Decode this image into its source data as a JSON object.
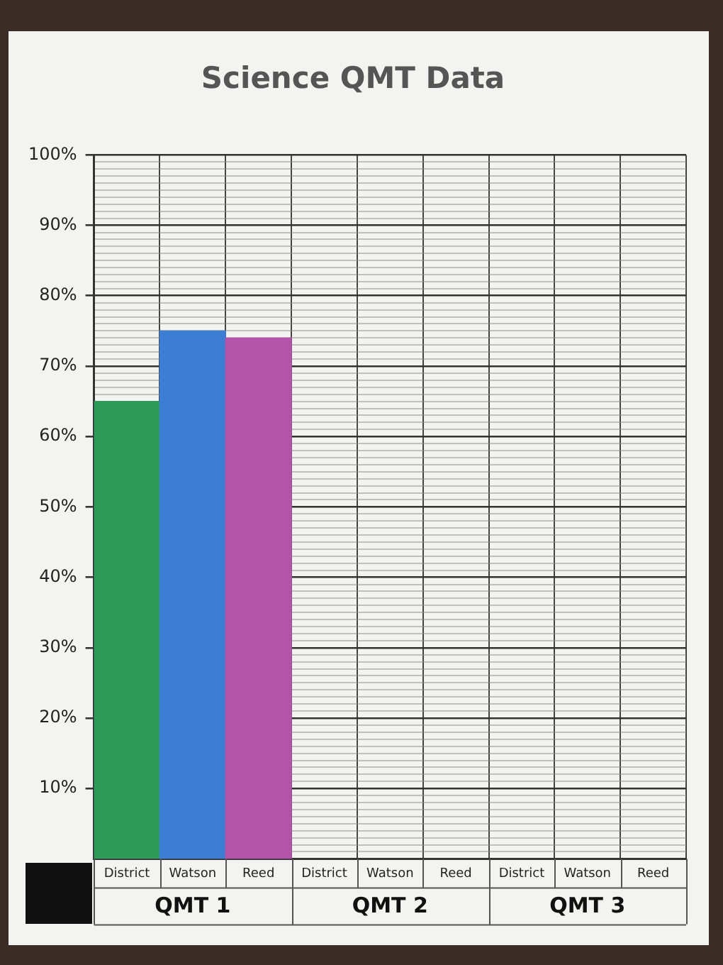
{
  "chart_data": {
    "type": "bar",
    "title": "Science QMT Data",
    "categories": [
      "District",
      "Watson",
      "Reed",
      "District",
      "Watson",
      "Reed",
      "District",
      "Watson",
      "Reed"
    ],
    "values": [
      65,
      75,
      74,
      null,
      null,
      null,
      null,
      null,
      null
    ],
    "colors": [
      "#2f9a57",
      "#3b7ed4",
      "#b553ab",
      null,
      null,
      null,
      null,
      null,
      null
    ],
    "ylim": [
      0,
      100
    ],
    "yticks": [
      {
        "value": 0,
        "label": null
      },
      {
        "value": 1,
        "label": null
      },
      {
        "value": 2,
        "label": null
      },
      {
        "value": 3,
        "label": null
      },
      {
        "value": 4,
        "label": null
      },
      {
        "value": 5,
        "label": null
      },
      {
        "value": 6,
        "label": null
      },
      {
        "value": 7,
        "label": null
      },
      {
        "value": 8,
        "label": null
      },
      {
        "value": 9,
        "label": null
      },
      {
        "value": 10,
        "label": "10%"
      },
      {
        "value": 11,
        "label": null
      },
      {
        "value": 12,
        "label": null
      },
      {
        "value": 13,
        "label": null
      },
      {
        "value": 14,
        "label": null
      },
      {
        "value": 15,
        "label": null
      },
      {
        "value": 16,
        "label": null
      },
      {
        "value": 17,
        "label": null
      },
      {
        "value": 18,
        "label": null
      },
      {
        "value": 19,
        "label": null
      },
      {
        "value": 20,
        "label": "20%"
      },
      {
        "value": 21,
        "label": null
      },
      {
        "value": 22,
        "label": null
      },
      {
        "value": 23,
        "label": null
      },
      {
        "value": 24,
        "label": null
      },
      {
        "value": 25,
        "label": null
      },
      {
        "value": 26,
        "label": null
      },
      {
        "value": 27,
        "label": null
      },
      {
        "value": 28,
        "label": null
      },
      {
        "value": 29,
        "label": null
      },
      {
        "value": 30,
        "label": "30%"
      },
      {
        "value": 31,
        "label": null
      },
      {
        "value": 32,
        "label": null
      },
      {
        "value": 33,
        "label": null
      },
      {
        "value": 34,
        "label": null
      },
      {
        "value": 35,
        "label": null
      },
      {
        "value": 36,
        "label": null
      },
      {
        "value": 37,
        "label": null
      },
      {
        "value": 38,
        "label": null
      },
      {
        "value": 39,
        "label": null
      },
      {
        "value": 40,
        "label": "40%"
      },
      {
        "value": 41,
        "label": null
      },
      {
        "value": 42,
        "label": null
      },
      {
        "value": 43,
        "label": null
      },
      {
        "value": 44,
        "label": null
      },
      {
        "value": 45,
        "label": null
      },
      {
        "value": 46,
        "label": null
      },
      {
        "value": 47,
        "label": null
      },
      {
        "value": 48,
        "label": null
      },
      {
        "value": 49,
        "label": null
      },
      {
        "value": 50,
        "label": "50%"
      },
      {
        "value": 51,
        "label": null
      },
      {
        "value": 52,
        "label": null
      },
      {
        "value": 53,
        "label": null
      },
      {
        "value": 54,
        "label": null
      },
      {
        "value": 55,
        "label": null
      },
      {
        "value": 56,
        "label": null
      },
      {
        "value": 57,
        "label": null
      },
      {
        "value": 58,
        "label": null
      },
      {
        "value": 59,
        "label": null
      },
      {
        "value": 60,
        "label": "60%"
      },
      {
        "value": 61,
        "label": null
      },
      {
        "value": 62,
        "label": null
      },
      {
        "value": 63,
        "label": null
      },
      {
        "value": 64,
        "label": null
      },
      {
        "value": 65,
        "label": null
      },
      {
        "value": 66,
        "label": null
      },
      {
        "value": 67,
        "label": null
      },
      {
        "value": 68,
        "label": null
      },
      {
        "value": 69,
        "label": null
      },
      {
        "value": 70,
        "label": "70%"
      },
      {
        "value": 71,
        "label": null
      },
      {
        "value": 72,
        "label": null
      },
      {
        "value": 73,
        "label": null
      },
      {
        "value": 74,
        "label": null
      },
      {
        "value": 75,
        "label": null
      },
      {
        "value": 76,
        "label": null
      },
      {
        "value": 77,
        "label": null
      },
      {
        "value": 78,
        "label": null
      },
      {
        "value": 79,
        "label": null
      },
      {
        "value": 80,
        "label": "80%"
      },
      {
        "value": 81,
        "label": null
      },
      {
        "value": 82,
        "label": null
      },
      {
        "value": 83,
        "label": null
      },
      {
        "value": 84,
        "label": null
      },
      {
        "value": 85,
        "label": null
      },
      {
        "value": 86,
        "label": null
      },
      {
        "value": 87,
        "label": null
      },
      {
        "value": 88,
        "label": null
      },
      {
        "value": 89,
        "label": null
      },
      {
        "value": 90,
        "label": "90%"
      },
      {
        "value": 91,
        "label": null
      },
      {
        "value": 92,
        "label": null
      },
      {
        "value": 93,
        "label": null
      },
      {
        "value": 94,
        "label": null
      },
      {
        "value": 95,
        "label": null
      },
      {
        "value": 96,
        "label": null
      },
      {
        "value": 97,
        "label": null
      },
      {
        "value": 98,
        "label": null
      },
      {
        "value": 99,
        "label": null
      },
      {
        "value": 100,
        "label": "100%"
      }
    ],
    "grid": true,
    "annotations": [
      "QMT 1",
      "QMT 2",
      "QMT 3"
    ]
  }
}
